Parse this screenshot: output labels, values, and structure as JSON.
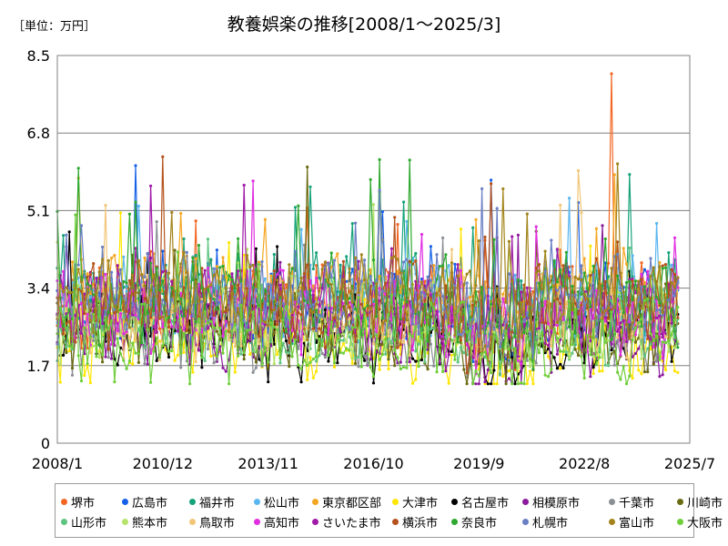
{
  "unit_label": "［単位：万円］",
  "chart_data": {
    "type": "line",
    "title": "教養娯楽の推移[2008/1～2025/3]",
    "xlabel": "",
    "ylabel": "万円",
    "ylim": [
      0,
      8.5
    ],
    "y_ticks": [
      "0",
      "1.7",
      "3.4",
      "5.1",
      "6.8",
      "8.5"
    ],
    "x_ticks": [
      "2008/1",
      "2010/12",
      "2013/11",
      "2016/10",
      "2019/9",
      "2022/8",
      "2025/7"
    ],
    "x_range": [
      "2008/1",
      "2025/7"
    ],
    "grid": true,
    "legend_position": "bottom",
    "series": [
      {
        "name": "堺市",
        "color": "#f26522",
        "peak": {
          "x": "2023/5",
          "value": 8.1
        }
      },
      {
        "name": "広島市",
        "color": "#1560e8"
      },
      {
        "name": "福井市",
        "color": "#17a37a"
      },
      {
        "name": "松山市",
        "color": "#5bb6f0"
      },
      {
        "name": "東京都区部",
        "color": "#f5a623"
      },
      {
        "name": "大津市",
        "color": "#ffe600"
      },
      {
        "name": "名古屋市",
        "color": "#000000"
      },
      {
        "name": "相模原市",
        "color": "#8b1a9c"
      },
      {
        "name": "千葉市",
        "color": "#8a8f94"
      },
      {
        "name": "川崎市",
        "color": "#6b6b12"
      },
      {
        "name": "山形市",
        "color": "#5fc47f"
      },
      {
        "name": "熊本市",
        "color": "#b5e36b"
      },
      {
        "name": "鳥取市",
        "color": "#f2c679"
      },
      {
        "name": "高知市",
        "color": "#e02ee0"
      },
      {
        "name": "さいたま市",
        "color": "#a01aa8"
      },
      {
        "name": "横浜市",
        "color": "#b5521c"
      },
      {
        "name": "奈良市",
        "color": "#2ea82e"
      },
      {
        "name": "札幌市",
        "color": "#6a7fc4"
      },
      {
        "name": "富山市",
        "color": "#a3841c"
      },
      {
        "name": "大阪市",
        "color": "#6fce3a"
      }
    ]
  }
}
